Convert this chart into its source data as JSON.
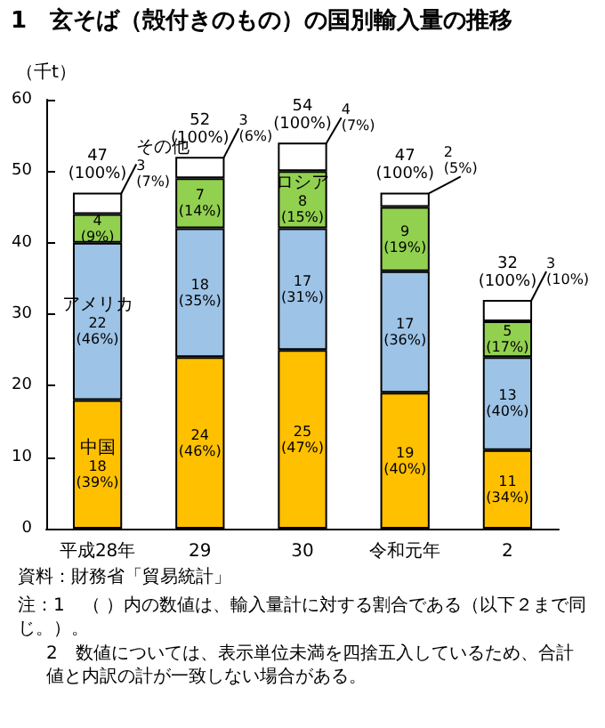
{
  "chart_data": {
    "type": "bar",
    "stacked": true,
    "title": "1　玄そば（殻付きのもの）の国別輸入量の推移",
    "ylabel": "（千t）",
    "categories": [
      "平成28年",
      "29",
      "30",
      "令和元年",
      "2"
    ],
    "series": [
      {
        "color": "#ffc000",
        "values": [
          18,
          24,
          25,
          19,
          11
        ],
        "value_labels": [
          "中国\n18\n(39%)",
          "24\n(46%)",
          "25\n(47%)",
          "19\n(40%)",
          "11\n(34%)"
        ]
      },
      {
        "color": "#9dc3e6",
        "values": [
          22,
          18,
          17,
          17,
          13
        ],
        "value_labels": [
          "アメリカ\n22\n(46%)",
          "18\n(35%)",
          "17\n(31%)",
          "17\n(36%)",
          "13\n(40%)"
        ]
      },
      {
        "color": "#92d050",
        "values": [
          4,
          7,
          8,
          9,
          5
        ],
        "value_labels": [
          "4\n(9%)",
          "7\n(14%)",
          "ロシア\n8\n(15%)",
          "9\n(19%)",
          "5\n(17%)"
        ]
      },
      {
        "color": "#ffffff",
        "values": [
          3,
          3,
          4,
          2,
          3
        ],
        "value_labels": [
          "その他\n3\n(7%)",
          "3\n(6%)",
          "4\n(7%)",
          "2\n(5%)",
          "3\n(10%)"
        ]
      }
    ],
    "totals": [
      "47\n(100%)",
      "52\n(100%)",
      "54\n(100%)",
      "47\n(100%)",
      "32\n(100%)"
    ],
    "ylim": [
      0,
      60
    ],
    "yticks": [
      0,
      10,
      20,
      30,
      40,
      50,
      60
    ],
    "annotations": [
      "資料：財務省「貿易統計」",
      "注：1　（ ）内の数値は、輸入量計に対する割合である（以下２まで同じ。）。",
      "2　数値については、表示単位未満を四捨五入しているため、合計値と内訳の計が一致しない場合がある。"
    ]
  }
}
